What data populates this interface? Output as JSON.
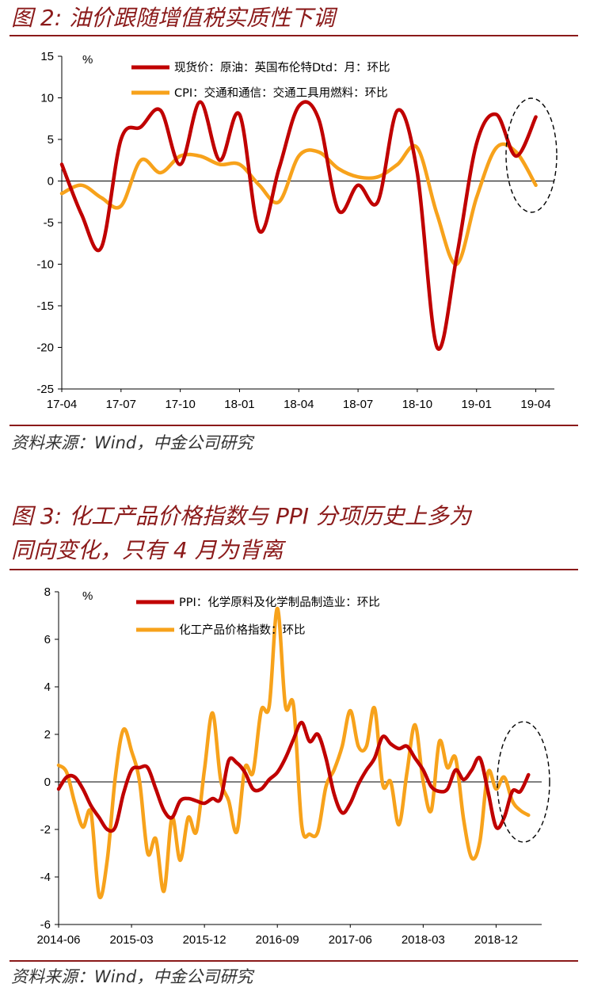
{
  "figure1": {
    "title": "图 2:  油价跟随增值税实质性下调",
    "source": "资料来源：Wind，中金公司研究"
  },
  "figure2": {
    "title_line1": "图 3:  化工产品价格指数与 PPI 分项历史上多为",
    "title_line2": "同向变化，只有 4 月为背离",
    "source": "资料来源：Wind，中金公司研究"
  },
  "colors": {
    "red": "#c00000",
    "orange": "#f7a21b",
    "title": "#8b1a1a"
  },
  "chart_data": [
    {
      "type": "line",
      "unit_label": "%",
      "ylim": [
        -25,
        15
      ],
      "yticks": [
        "15",
        "10",
        "5",
        "0",
        "-5",
        "-10",
        "-15",
        "-20",
        "-25"
      ],
      "xticks": [
        "17-04",
        "17-07",
        "17-10",
        "18-01",
        "18-04",
        "18-07",
        "18-10",
        "19-01",
        "19-04"
      ],
      "n_points": 25,
      "series": [
        {
          "name": "现货价：原油：英国布伦特Dtd：月：环比",
          "color": "#c00000",
          "values": [
            2,
            -4,
            -8,
            5,
            6.5,
            8.5,
            2,
            9.5,
            2.5,
            8,
            -6,
            1.5,
            9,
            7.5,
            -3.5,
            -0.5,
            -2.5,
            8.5,
            1,
            -20,
            -9,
            4.5,
            8,
            3,
            7.7
          ]
        },
        {
          "name": "CPI：交通和通信：交通工具用燃料：环比",
          "color": "#f7a21b",
          "values": [
            -1.5,
            -0.5,
            -2,
            -3,
            2.5,
            1,
            3,
            3,
            2,
            2,
            -0.5,
            -2.5,
            3,
            3.5,
            1.5,
            0.5,
            0.5,
            2,
            4,
            -4,
            -10,
            -2,
            4,
            3.5,
            -0.5
          ]
        }
      ]
    },
    {
      "type": "line",
      "unit_label": "%",
      "ylim": [
        -6,
        8
      ],
      "yticks": [
        "8",
        "6",
        "4",
        "2",
        "0",
        "-2",
        "-4",
        "-6"
      ],
      "xticks": [
        "2014-06",
        "2015-03",
        "2015-12",
        "2016-09",
        "2017-06",
        "2018-03",
        "2018-12"
      ],
      "n_points": 59,
      "series": [
        {
          "name": "PPI：化学原料及化学制品制造业：环比",
          "color": "#c00000",
          "values": [
            -0.3,
            0.2,
            0.2,
            -0.3,
            -1.0,
            -1.5,
            -2.0,
            -1.9,
            -0.5,
            0.5,
            0.6,
            0.6,
            -0.3,
            -1.2,
            -1.5,
            -0.8,
            -0.7,
            -0.8,
            -0.9,
            -0.7,
            -0.7,
            0.9,
            0.8,
            0.4,
            -0.3,
            -0.3,
            0.1,
            0.4,
            1.0,
            1.8,
            2.5,
            1.7,
            2.0,
            1.0,
            -0.5,
            -1.3,
            -0.9,
            -0.1,
            0.5,
            1.0,
            1.9,
            1.6,
            1.4,
            1.5,
            1.0,
            0.5,
            -0.2,
            -0.4,
            -0.3,
            0.5,
            0.1,
            0.5,
            1.0,
            -0.4,
            -1.9,
            -1.5,
            -0.4,
            -0.4,
            0.3
          ]
        },
        {
          "name": "化工产品价格指数：环比",
          "color": "#f7a21b",
          "values": [
            0.7,
            0.4,
            -0.9,
            -1.9,
            -1.3,
            -4.8,
            -3.3,
            0.2,
            2.2,
            1.3,
            0.0,
            -3.0,
            -2.4,
            -4.6,
            -1.5,
            -3.3,
            -1.5,
            -2.1,
            0.5,
            2.9,
            0.1,
            -0.8,
            -2.1,
            0.6,
            0.4,
            3.0,
            3.2,
            7.3,
            3.2,
            3.2,
            -1.8,
            -2.2,
            -2.1,
            -0.2,
            0.5,
            1.5,
            3.0,
            1.5,
            1.5,
            3.1,
            -0.1,
            0.0,
            -1.8,
            0.4,
            2.4,
            0.0,
            -1.2,
            1.7,
            0.6,
            1.0,
            -1.6,
            -3.2,
            -2.5,
            0.4,
            -0.3,
            0.2,
            -0.8,
            -1.2,
            -1.4
          ]
        }
      ]
    }
  ]
}
